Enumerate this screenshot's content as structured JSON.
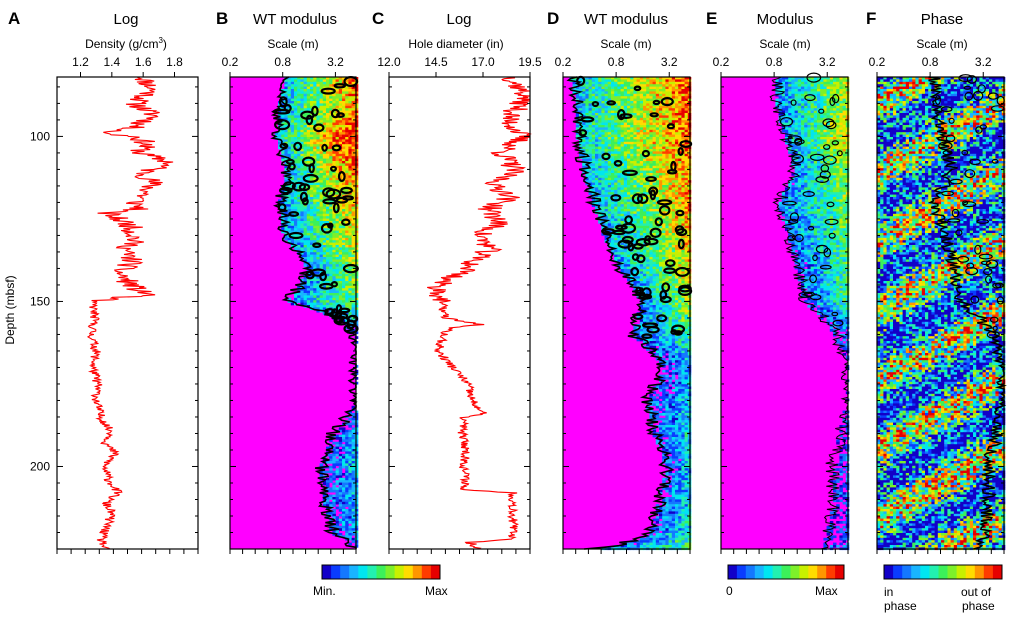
{
  "figure": {
    "depth_axis_label": "Depth (mbsf)",
    "depth_range": [
      82,
      225
    ],
    "depth_ticks": [
      100,
      150,
      200
    ],
    "colormaps": {
      "rainbow": [
        "#1200c8",
        "#0a3cff",
        "#1478ff",
        "#19b4ff",
        "#00e6f0",
        "#22f0b0",
        "#3cf05a",
        "#7df02a",
        "#c8f000",
        "#ffdc00",
        "#ff9600",
        "#ff3c00",
        "#e60000"
      ],
      "modulus_background": "#ff00ff",
      "contour": "#000000",
      "log_line": "#ff0000"
    }
  },
  "colorbars": [
    {
      "panel": "B",
      "min_label": "Min.",
      "max_label": "Max"
    },
    {
      "panel": "E",
      "min_label": "0",
      "max_label": "Max"
    },
    {
      "panel": "F",
      "min_label_line1": "in",
      "min_label_line2": "phase",
      "max_label_line1": "out of",
      "max_label_line2": "phase"
    }
  ],
  "chart_data": [
    {
      "panel": "A",
      "type": "line",
      "title": "Log",
      "xlabel": "Density (g/cm3)",
      "xlabel_main": "Density (g/cm",
      "xlabel_sup": "3",
      "xlabel_close": ")",
      "xlim": [
        1.05,
        1.95
      ],
      "x_ticks": [
        "1.2",
        "1.4",
        "1.6",
        "1.8"
      ],
      "x_tick_values": [
        1.2,
        1.4,
        1.6,
        1.8
      ],
      "ylabel": "Depth (mbsf)",
      "ylim": [
        82,
        225
      ],
      "y_inverted": true,
      "series": [
        {
          "depth": [
            82,
            86,
            90,
            94,
            98,
            99,
            100,
            102,
            105,
            108,
            111,
            114,
            117,
            120,
            122,
            123,
            124,
            127,
            131,
            135,
            138,
            141,
            144,
            147,
            148,
            149,
            150,
            155,
            160,
            165,
            170,
            175,
            180,
            185,
            190,
            193,
            196,
            200,
            204,
            208,
            211,
            214,
            218,
            222,
            225
          ],
          "values": [
            1.6,
            1.66,
            1.55,
            1.68,
            1.5,
            1.33,
            1.55,
            1.62,
            1.58,
            1.78,
            1.6,
            1.66,
            1.62,
            1.55,
            1.58,
            1.36,
            1.4,
            1.52,
            1.55,
            1.48,
            1.54,
            1.44,
            1.5,
            1.58,
            1.66,
            1.4,
            1.28,
            1.29,
            1.27,
            1.3,
            1.28,
            1.31,
            1.3,
            1.33,
            1.4,
            1.36,
            1.42,
            1.35,
            1.38,
            1.44,
            1.36,
            1.4,
            1.37,
            1.33,
            1.36
          ]
        }
      ]
    },
    {
      "panel": "B",
      "type": "heatmap",
      "title": "WT modulus",
      "xlabel": "Scale (m)",
      "x_ticks": [
        "0.2",
        "0.8",
        "3.2"
      ],
      "x_tick_values": [
        0.2,
        0.8,
        3.2
      ],
      "xlim": [
        0.2,
        5.5
      ],
      "x_scale": "log",
      "ylim": [
        82,
        225
      ],
      "description_profile": {
        "depth": [
          82,
          90,
          100,
          110,
          120,
          130,
          140,
          150,
          160,
          170,
          180,
          190,
          200,
          210,
          220,
          225
        ],
        "edge_scale": [
          0.9,
          0.75,
          0.7,
          0.9,
          0.75,
          0.85,
          1.6,
          0.9,
          5.5,
          5.5,
          5.5,
          3.0,
          2.2,
          2.4,
          3.0,
          5.5
        ],
        "intensity": [
          0.9,
          0.8,
          1.0,
          0.85,
          0.75,
          0.7,
          0.6,
          0.55,
          0.1,
          0.0,
          0.05,
          0.25,
          0.3,
          0.3,
          0.25,
          0.1
        ]
      }
    },
    {
      "panel": "C",
      "type": "line",
      "title": "Log",
      "xlabel": "Hole diameter (in)",
      "xlim": [
        12.0,
        19.5
      ],
      "x_ticks": [
        "12.0",
        "14.5",
        "17.0",
        "19.5"
      ],
      "x_tick_values": [
        12.0,
        14.5,
        17.0,
        19.5
      ],
      "ylim": [
        82,
        225
      ],
      "y_inverted": true,
      "series": [
        {
          "depth": [
            82,
            88,
            95,
            100,
            105,
            110,
            115,
            118,
            122,
            126,
            130,
            134,
            138,
            141,
            143,
            145,
            150,
            155,
            157,
            158,
            160,
            165,
            170,
            175,
            180,
            184,
            185,
            190,
            195,
            200,
            205,
            207,
            208,
            212,
            218,
            222,
            223,
            225
          ],
          "values": [
            18.5,
            19.3,
            18.3,
            19.1,
            18.0,
            18.7,
            17.5,
            18.6,
            17.3,
            17.9,
            16.8,
            17.4,
            16.4,
            16.1,
            15.2,
            14.6,
            14.8,
            15.0,
            16.9,
            15.2,
            14.9,
            14.6,
            15.4,
            16.2,
            16.4,
            17.0,
            16.0,
            15.9,
            16.1,
            16.0,
            16.1,
            15.9,
            18.6,
            18.6,
            18.6,
            18.6,
            16.3,
            16.8
          ]
        }
      ]
    },
    {
      "panel": "D",
      "type": "heatmap",
      "title": "WT modulus",
      "xlabel": "Scale (m)",
      "x_ticks": [
        "0.2",
        "0.8",
        "3.2"
      ],
      "x_tick_values": [
        0.2,
        0.8,
        3.2
      ],
      "xlim": [
        0.2,
        5.5
      ],
      "x_scale": "log",
      "ylim": [
        82,
        225
      ],
      "description_profile": {
        "depth": [
          82,
          90,
          100,
          110,
          120,
          130,
          140,
          150,
          160,
          170,
          180,
          190,
          200,
          210,
          220,
          225
        ],
        "edge_scale": [
          0.25,
          0.3,
          0.3,
          0.35,
          0.45,
          0.6,
          0.9,
          1.6,
          1.2,
          2.8,
          1.8,
          2.2,
          3.0,
          2.5,
          2.0,
          0.4
        ],
        "intensity": [
          0.9,
          0.85,
          0.9,
          0.8,
          0.8,
          0.75,
          0.7,
          0.6,
          0.45,
          0.25,
          0.3,
          0.35,
          0.3,
          0.35,
          0.4,
          0.5
        ]
      }
    },
    {
      "panel": "E",
      "type": "heatmap",
      "title": "Modulus",
      "xlabel": "Scale (m)",
      "x_ticks": [
        "0.2",
        "0.8",
        "3.2"
      ],
      "x_tick_values": [
        0.2,
        0.8,
        3.2
      ],
      "xlim": [
        0.2,
        5.5
      ],
      "x_scale": "log",
      "ylim": [
        82,
        225
      ],
      "description_profile": {
        "depth": [
          82,
          90,
          100,
          110,
          120,
          130,
          140,
          150,
          160,
          170,
          180,
          190,
          200,
          210,
          220,
          225
        ],
        "edge_scale": [
          0.9,
          0.85,
          1.1,
          1.4,
          0.9,
          1.2,
          1.5,
          1.8,
          4.0,
          5.5,
          5.5,
          4.5,
          3.6,
          3.8,
          3.3,
          2.8
        ],
        "intensity": [
          0.7,
          0.6,
          0.75,
          0.6,
          0.55,
          0.5,
          0.45,
          0.45,
          0.15,
          0.0,
          0.0,
          0.1,
          0.1,
          0.1,
          0.12,
          0.15
        ]
      }
    },
    {
      "panel": "F",
      "type": "heatmap",
      "title": "Phase",
      "xlabel": "Scale (m)",
      "x_ticks": [
        "0.2",
        "0.8",
        "3.2"
      ],
      "x_tick_values": [
        0.2,
        0.8,
        3.2
      ],
      "xlim": [
        0.2,
        5.5
      ],
      "x_scale": "log",
      "ylim": [
        82,
        225
      ],
      "description_profile": {
        "depth": [
          82,
          90,
          100,
          110,
          120,
          130,
          140,
          150,
          160,
          170,
          180,
          190,
          200,
          210,
          220,
          225
        ],
        "edge_scale": [
          0.9,
          0.85,
          1.1,
          1.4,
          0.9,
          1.2,
          1.5,
          1.8,
          4.0,
          5.5,
          5.5,
          4.5,
          3.6,
          3.8,
          3.3,
          2.8
        ],
        "intensity": [
          0.5,
          0.5,
          0.5,
          0.5,
          0.5,
          0.5,
          0.5,
          0.5,
          0.5,
          0.5,
          0.5,
          0.5,
          0.5,
          0.5,
          0.5,
          0.5
        ]
      }
    }
  ],
  "panel_labels": [
    "A",
    "B",
    "C",
    "D",
    "E",
    "F"
  ]
}
